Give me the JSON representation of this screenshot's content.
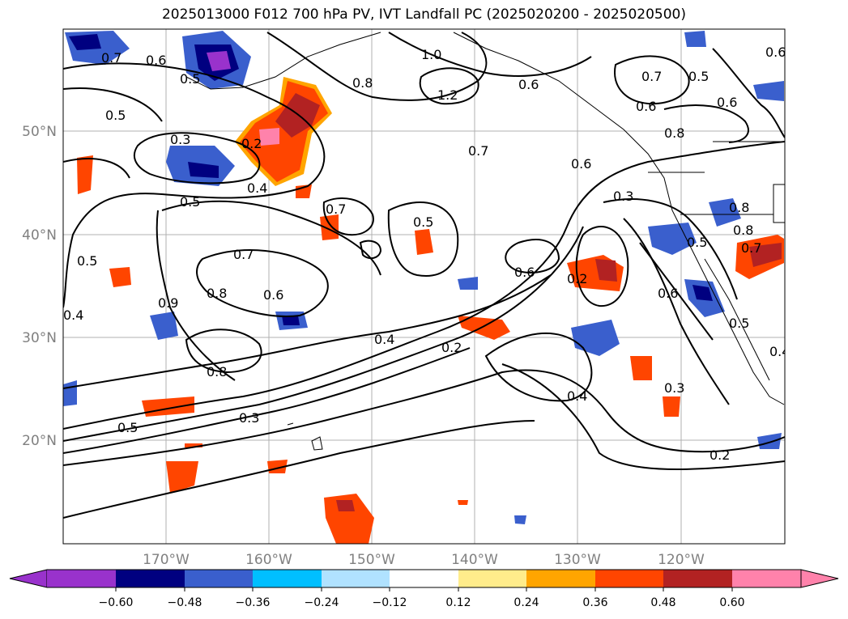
{
  "title": "2025013000 F012 700 hPa PV, IVT Landfall PC (2025020200 - 2025020500)",
  "map": {
    "lon_labels": [
      "170°W",
      "160°W",
      "150°W",
      "140°W",
      "130°W",
      "120°W"
    ],
    "lat_labels": [
      "50°N",
      "40°N",
      "30°N",
      "20°N"
    ],
    "contour_labels": [
      "0.7",
      "0.6",
      "0.5",
      "1.0",
      "1.2",
      "0.8",
      "0.6",
      "0.7",
      "0.5",
      "0.6",
      "0.5",
      "0.6",
      "0.8",
      "0.3",
      "0.2",
      "0.4",
      "0.5",
      "0.7",
      "0.6",
      "0.3",
      "0.8",
      "0.5",
      "0.7",
      "0.5",
      "0.7",
      "0.8",
      "0.6",
      "0.5",
      "0.6",
      "0.2",
      "0.6",
      "0.4",
      "0.8",
      "0.4",
      "0.2",
      "0.4",
      "0.3",
      "0.5",
      "0.3",
      "0.2",
      "0.7",
      "0.4",
      "0.6",
      "0.8",
      "0.5",
      "0.9"
    ]
  },
  "colorbar": {
    "tick_labels": [
      "−0.60",
      "−0.48",
      "−0.36",
      "−0.24",
      "−0.12",
      "0.12",
      "0.24",
      "0.36",
      "0.48",
      "0.60"
    ],
    "colors": [
      "#9932CC",
      "#000080",
      "#3A5FCD",
      "#00BFFF",
      "#B0E2FF",
      "#FFFFFF",
      "#FFEC8B",
      "#FFA500",
      "#FF4500",
      "#B22222",
      "#FF82AB"
    ]
  }
}
